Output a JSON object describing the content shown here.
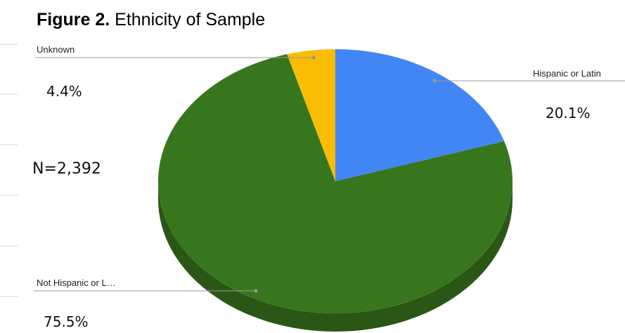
{
  "title": {
    "prefix": "Figure 2.",
    "text": "Ethnicity of Sample"
  },
  "sample_note": "N=2,392",
  "chart_data": {
    "type": "pie",
    "title": "Figure 2. Ethnicity of Sample",
    "legend": "none",
    "slices": [
      {
        "label": "Hispanic or Latino",
        "shown_label": "Hispanic or Latin",
        "value": 20.1,
        "value_label": "20.1%",
        "color": "#4285F4"
      },
      {
        "label": "Not Hispanic or Latino",
        "shown_label": "Not Hispanic or L…",
        "value": 75.5,
        "value_label": "75.5%",
        "color": "#38761D"
      },
      {
        "label": "Unknown",
        "shown_label": "Unknown",
        "value": 4.4,
        "value_label": "4.4%",
        "color": "#FBBC04"
      }
    ],
    "side_colors": [
      "#2A5716"
    ]
  }
}
